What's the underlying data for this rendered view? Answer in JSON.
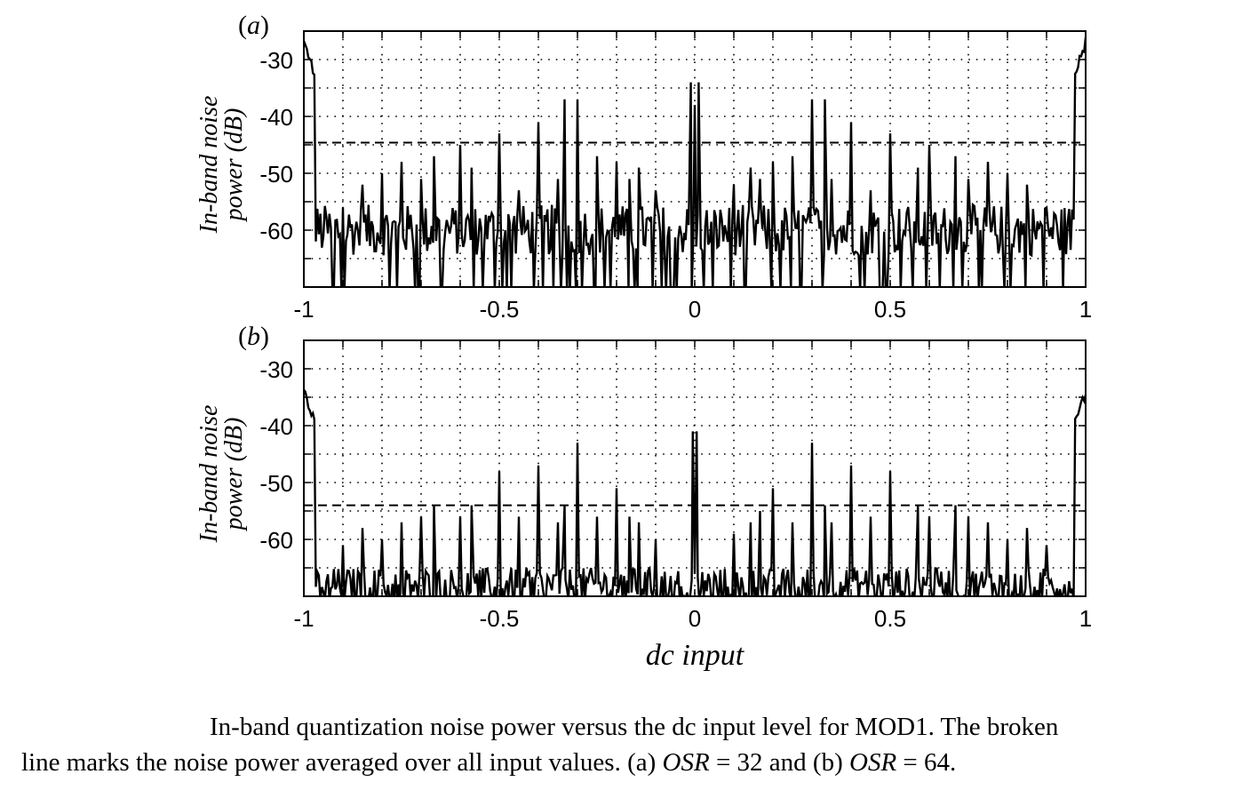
{
  "chart_data": [
    {
      "type": "line",
      "panel_label": "a",
      "xlabel": "",
      "ylabel_line1": "In-band noise",
      "ylabel_line2": "power (dB)",
      "xlim": [
        -1,
        1
      ],
      "ylim": [
        -70,
        -25
      ],
      "xticks": [
        "-1",
        "-0.5",
        "0",
        "0.5",
        "1"
      ],
      "yticks": [
        "-30",
        "-40",
        "-50",
        "-60"
      ],
      "grid": true,
      "average_line": -44.6,
      "baseline": -60,
      "edge_peak": -27,
      "peaks": [
        {
          "x": -0.9,
          "y": -56
        },
        {
          "x": -0.85,
          "y": -52
        },
        {
          "x": -0.8,
          "y": -50
        },
        {
          "x": -0.75,
          "y": -48
        },
        {
          "x": -0.7,
          "y": -51
        },
        {
          "x": -0.667,
          "y": -47
        },
        {
          "x": -0.6,
          "y": -45
        },
        {
          "x": -0.571,
          "y": -49
        },
        {
          "x": -0.5,
          "y": -43
        },
        {
          "x": -0.45,
          "y": -53
        },
        {
          "x": -0.4,
          "y": -41
        },
        {
          "x": -0.35,
          "y": -51
        },
        {
          "x": -0.333,
          "y": -37
        },
        {
          "x": -0.3,
          "y": -37
        },
        {
          "x": -0.25,
          "y": -47
        },
        {
          "x": -0.2,
          "y": -48
        },
        {
          "x": -0.167,
          "y": -51
        },
        {
          "x": -0.143,
          "y": -49
        },
        {
          "x": -0.1,
          "y": -53
        },
        {
          "x": -0.01,
          "y": -34
        },
        {
          "x": 0.0,
          "y": -38
        },
        {
          "x": 0.01,
          "y": -34
        },
        {
          "x": 0.1,
          "y": -52
        },
        {
          "x": 0.143,
          "y": -49
        },
        {
          "x": 0.167,
          "y": -51
        },
        {
          "x": 0.2,
          "y": -48
        },
        {
          "x": 0.25,
          "y": -47
        },
        {
          "x": 0.3,
          "y": -37
        },
        {
          "x": 0.333,
          "y": -37
        },
        {
          "x": 0.35,
          "y": -51
        },
        {
          "x": 0.4,
          "y": -41
        },
        {
          "x": 0.45,
          "y": -53
        },
        {
          "x": 0.5,
          "y": -43
        },
        {
          "x": 0.571,
          "y": -49
        },
        {
          "x": 0.6,
          "y": -45
        },
        {
          "x": 0.667,
          "y": -47
        },
        {
          "x": 0.7,
          "y": -51
        },
        {
          "x": 0.75,
          "y": -48
        },
        {
          "x": 0.8,
          "y": -50
        },
        {
          "x": 0.85,
          "y": -52
        },
        {
          "x": 0.9,
          "y": -56
        }
      ]
    },
    {
      "type": "line",
      "panel_label": "b",
      "xlabel": "dc input",
      "ylabel_line1": "In-band noise",
      "ylabel_line2": "power (dB)",
      "xlim": [
        -1,
        1
      ],
      "ylim": [
        -70,
        -25
      ],
      "xticks": [
        "-1",
        "-0.5",
        "0",
        "0.5",
        "1"
      ],
      "yticks": [
        "-30",
        "-40",
        "-50",
        "-60"
      ],
      "grid": true,
      "average_line": -54,
      "baseline": -68,
      "edge_peak": -34,
      "peaks": [
        {
          "x": -0.9,
          "y": -61
        },
        {
          "x": -0.85,
          "y": -58
        },
        {
          "x": -0.8,
          "y": -60
        },
        {
          "x": -0.75,
          "y": -57
        },
        {
          "x": -0.7,
          "y": -56
        },
        {
          "x": -0.667,
          "y": -54
        },
        {
          "x": -0.6,
          "y": -56
        },
        {
          "x": -0.571,
          "y": -54
        },
        {
          "x": -0.5,
          "y": -48
        },
        {
          "x": -0.45,
          "y": -56
        },
        {
          "x": -0.4,
          "y": -47
        },
        {
          "x": -0.35,
          "y": -57
        },
        {
          "x": -0.333,
          "y": -54
        },
        {
          "x": -0.3,
          "y": -43
        },
        {
          "x": -0.25,
          "y": -56
        },
        {
          "x": -0.2,
          "y": -51
        },
        {
          "x": -0.167,
          "y": -56
        },
        {
          "x": -0.143,
          "y": -57
        },
        {
          "x": -0.1,
          "y": -60
        },
        {
          "x": -0.005,
          "y": -41
        },
        {
          "x": 0.005,
          "y": -41
        },
        {
          "x": 0.1,
          "y": -59
        },
        {
          "x": 0.143,
          "y": -57
        },
        {
          "x": 0.167,
          "y": -55
        },
        {
          "x": 0.2,
          "y": -51
        },
        {
          "x": 0.25,
          "y": -57
        },
        {
          "x": 0.3,
          "y": -43
        },
        {
          "x": 0.333,
          "y": -54
        },
        {
          "x": 0.35,
          "y": -57
        },
        {
          "x": 0.4,
          "y": -47
        },
        {
          "x": 0.45,
          "y": -56
        },
        {
          "x": 0.5,
          "y": -48
        },
        {
          "x": 0.571,
          "y": -54
        },
        {
          "x": 0.6,
          "y": -56
        },
        {
          "x": 0.667,
          "y": -54
        },
        {
          "x": 0.7,
          "y": -56
        },
        {
          "x": 0.75,
          "y": -57
        },
        {
          "x": 0.8,
          "y": -60
        },
        {
          "x": 0.85,
          "y": -58
        },
        {
          "x": 0.9,
          "y": -61
        }
      ]
    }
  ],
  "caption": {
    "line1": "In-band quantization noise power versus the dc input level for MOD1.  The broken",
    "line2_part1": "line marks the noise power averaged over all input values. (a) ",
    "osr": "OSR",
    "eq32": " = 32 and (b) ",
    "eq64": " = 64."
  }
}
